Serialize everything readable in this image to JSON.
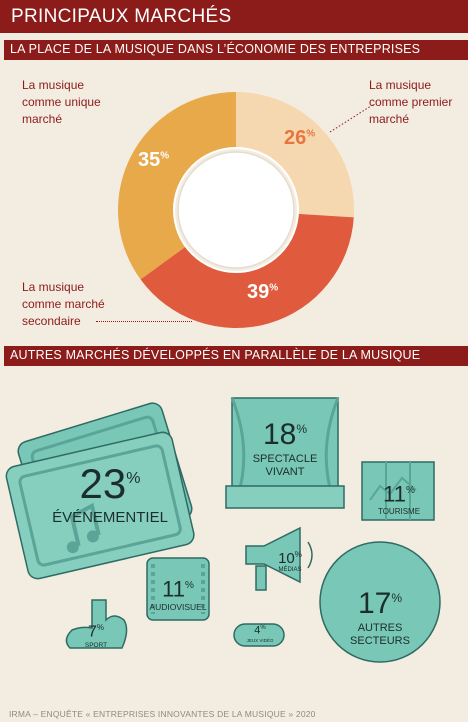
{
  "header": {
    "title": "PRINCIPAUX MARCHÉS"
  },
  "section1": {
    "title": "LA PLACE DE LA MUSIQUE DANS L’ÉCONOMIE DES ENTREPRISES"
  },
  "section2": {
    "title": "AUTRES MARCHÉS DÉVELOPPÉS EN PARALLÈLE DE LA MUSIQUE"
  },
  "chart_data": [
    {
      "type": "pie",
      "title": "LA PLACE DE LA MUSIQUE DANS L’ÉCONOMIE DES ENTREPRISES",
      "slices": [
        {
          "label_lines": [
            "La musique",
            "comme premier",
            "marché"
          ],
          "value": 26,
          "value_label": "26",
          "color": "#f6d8b0"
        },
        {
          "label_lines": [
            "La musique",
            "comme marché",
            "secondaire"
          ],
          "value": 39,
          "value_label": "39",
          "color": "#e05a3e"
        },
        {
          "label_lines": [
            "La musique",
            "comme unique",
            "marché"
          ],
          "value": 35,
          "value_label": "35",
          "color": "#e8a94a"
        }
      ],
      "unit": "%"
    },
    {
      "type": "table",
      "title": "AUTRES MARCHÉS DÉVELOPPÉS EN PARALLÈLE DE LA MUSIQUE",
      "items": [
        {
          "value": "23",
          "label": "ÉVÉNEMENTIEL"
        },
        {
          "value": "18",
          "label_lines": [
            "SPECTACLE",
            "VIVANT"
          ]
        },
        {
          "value": "11",
          "label": "TOURISME"
        },
        {
          "value": "10",
          "label": "MÉDIAS"
        },
        {
          "value": "11",
          "label": "AUDIOVISUEL"
        },
        {
          "value": "17",
          "label_lines": [
            "AUTRES",
            "SECTEURS"
          ]
        },
        {
          "value": "7",
          "label": "SPORT"
        },
        {
          "value": "4",
          "label": "JEUX VIDÉO"
        }
      ],
      "unit": "%"
    }
  ],
  "footer": {
    "text": "IRMA – ENQUÊTE « ENTREPRISES INNOVANTES DE LA MUSIQUE » 2020"
  }
}
